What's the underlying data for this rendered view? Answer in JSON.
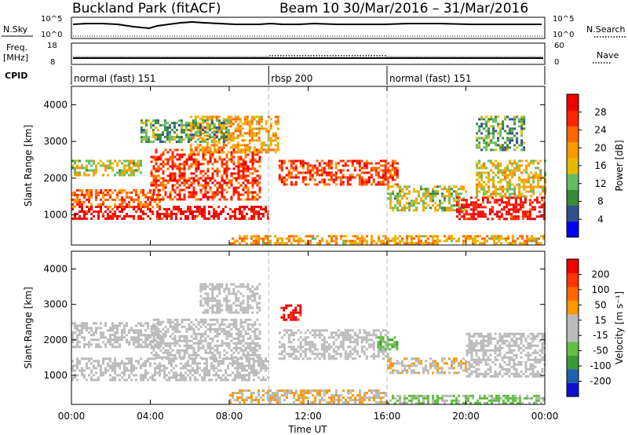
{
  "header": {
    "site": "Buckland Park (fitACF)",
    "beam": "Beam 10",
    "dates": "30/Mar/2016 – 31/Mar/2016"
  },
  "sky_panel": {
    "left_label": "N.Sky",
    "left_top": "10^5",
    "left_bottom": "10^0",
    "right_top": "10^5",
    "right_bottom": "10^0",
    "right_label": "N.Search"
  },
  "freq_panel": {
    "left_label_1": "Freq.",
    "left_label_2": "[MHz]",
    "left_top": "18",
    "left_bottom": "8",
    "right_top": "60",
    "right_bottom": "0",
    "right_label": "Nave"
  },
  "cpid": {
    "label": "CPID",
    "segments": [
      {
        "name": "normal (fast) 151",
        "start_hour": 0,
        "end_hour": 10
      },
      {
        "name": "rbsp 200",
        "start_hour": 10,
        "end_hour": 16
      },
      {
        "name": "normal (fast) 151",
        "start_hour": 16,
        "end_hour": 24
      }
    ]
  },
  "colors": {
    "power": [
      "#0000ff",
      "#305090",
      "#3a8a3a",
      "#66bb66",
      "#e6b800",
      "#ff9900",
      "#ff6600",
      "#ff2200",
      "#ee0000"
    ],
    "velocity": [
      "#1010d0",
      "#2060b0",
      "#3a9a3a",
      "#60c040",
      "#bbbbbb",
      "#bbbbbb",
      "#ff9900",
      "#ff6600",
      "#ff3300",
      "#ee0000"
    ]
  },
  "chart_data": [
    {
      "type": "heatmap",
      "panel": "power",
      "ylabel": "Slant Range [km]",
      "xlabel": "Time UT",
      "x_ticks": [
        "00:00",
        "04:00",
        "08:00",
        "12:00",
        "16:00",
        "20:00",
        "00:00"
      ],
      "y_ticks": [
        "1000",
        "2000",
        "3000",
        "4000"
      ],
      "xlim_hours": [
        0,
        24
      ],
      "ylim_km": [
        180,
        4500
      ],
      "colorbar_label": "Power [dB]",
      "colorbar_ticks": [
        "28",
        "24",
        "20",
        "16",
        "12",
        "8",
        "4"
      ],
      "colorbar_range": [
        0,
        30
      ],
      "bands": [
        {
          "t0": 0.0,
          "t1": 10.0,
          "r0": 900,
          "r1": 1250,
          "v": 28
        },
        {
          "t0": 0.0,
          "t1": 4.5,
          "r0": 1250,
          "r1": 1700,
          "v": 22
        },
        {
          "t0": 0.0,
          "t1": 3.5,
          "r0": 2100,
          "r1": 2500,
          "v": 14
        },
        {
          "t0": 4.0,
          "t1": 9.5,
          "r0": 1400,
          "r1": 2800,
          "v": 24
        },
        {
          "t0": 6.0,
          "t1": 10.5,
          "r0": 2700,
          "r1": 3700,
          "v": 18
        },
        {
          "t0": 3.5,
          "t1": 8.0,
          "r0": 3000,
          "r1": 3600,
          "v": 10
        },
        {
          "t0": 10.5,
          "t1": 16.5,
          "r0": 1800,
          "r1": 2500,
          "v": 24
        },
        {
          "t0": 16.0,
          "t1": 20.0,
          "r0": 1100,
          "r1": 1800,
          "v": 14
        },
        {
          "t0": 19.5,
          "t1": 24.0,
          "r0": 900,
          "r1": 1500,
          "v": 28
        },
        {
          "t0": 20.5,
          "t1": 24.0,
          "r0": 1500,
          "r1": 2500,
          "v": 16
        },
        {
          "t0": 20.5,
          "t1": 23.0,
          "r0": 2800,
          "r1": 3700,
          "v": 10
        },
        {
          "t0": 8.0,
          "t1": 24.0,
          "r0": 200,
          "r1": 450,
          "v": 18
        }
      ]
    },
    {
      "type": "heatmap",
      "panel": "velocity",
      "ylabel": "Slant Range [km]",
      "xlabel": "Time UT",
      "x_ticks": [
        "00:00",
        "04:00",
        "08:00",
        "12:00",
        "16:00",
        "20:00",
        "00:00"
      ],
      "y_ticks": [
        "1000",
        "2000",
        "3000",
        "4000"
      ],
      "xlim_hours": [
        0,
        24
      ],
      "ylim_km": [
        180,
        4500
      ],
      "colorbar_label": "Velocity [m s⁻¹]",
      "colorbar_ticks": [
        "200",
        "100",
        "50",
        "15",
        "-15",
        "-50",
        "-100",
        "-200"
      ],
      "colorbar_range": [
        -250,
        250
      ],
      "bands": [
        {
          "t0": 0.0,
          "t1": 10.0,
          "r0": 900,
          "r1": 1500,
          "v": 0
        },
        {
          "t0": 0.0,
          "t1": 4.5,
          "r0": 1800,
          "r1": 2500,
          "v": 5
        },
        {
          "t0": 4.0,
          "t1": 9.5,
          "r0": 1500,
          "r1": 2600,
          "v": -5
        },
        {
          "t0": 6.5,
          "t1": 9.5,
          "r0": 2800,
          "r1": 3600,
          "v": -20
        },
        {
          "t0": 10.6,
          "t1": 11.6,
          "r0": 2550,
          "r1": 3000,
          "v": 220
        },
        {
          "t0": 10.5,
          "t1": 16.0,
          "r0": 1500,
          "r1": 2300,
          "v": 0
        },
        {
          "t0": 15.5,
          "t1": 16.5,
          "r0": 1750,
          "r1": 2100,
          "v": -80
        },
        {
          "t0": 16.0,
          "t1": 20.0,
          "r0": 1100,
          "r1": 1500,
          "v": 40
        },
        {
          "t0": 20.0,
          "t1": 24.0,
          "r0": 1000,
          "r1": 2200,
          "v": 0
        },
        {
          "t0": 16.0,
          "t1": 24.0,
          "r0": 250,
          "r1": 450,
          "v": -60
        },
        {
          "t0": 8.0,
          "t1": 16.0,
          "r0": 250,
          "r1": 600,
          "v": 50
        }
      ]
    }
  ]
}
